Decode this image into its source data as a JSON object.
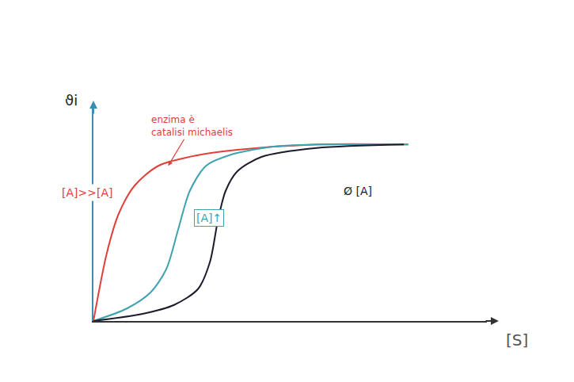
{
  "chart_data": {
    "type": "line",
    "x_label": "[S]",
    "y_label": "ϑi",
    "xlim": [
      0,
      10
    ],
    "ylim": [
      0,
      1.2
    ],
    "xticks": [],
    "yticks": [],
    "tick_labels": false,
    "grid": false,
    "annotations": [
      [
        "enzima è",
        "catalisi michaelis"
      ]
    ],
    "series": [
      {
        "name": "[A]>>[A]",
        "color": "#e0403a",
        "x": [
          0,
          0.34,
          0.64,
          1.05,
          1.65,
          2.66,
          3.66,
          5.67,
          8.0
        ],
        "values": [
          0,
          0.38,
          0.6,
          0.76,
          0.87,
          0.93,
          0.96,
          0.99,
          0.99
        ]
      },
      {
        "name": "[A]↑",
        "color": "#3fa3ad",
        "x": [
          0,
          0.85,
          1.45,
          1.85,
          2.15,
          2.45,
          2.86,
          3.46,
          4.67,
          8.0
        ],
        "values": [
          0,
          0.07,
          0.16,
          0.29,
          0.51,
          0.73,
          0.87,
          0.93,
          0.98,
          0.99
        ]
      },
      {
        "name": "Ø [A]",
        "color": "#1c1c2c",
        "x": [
          0,
          1.25,
          2.05,
          2.66,
          2.96,
          3.16,
          3.36,
          3.66,
          4.27,
          5.67,
          7.89
        ],
        "values": [
          0,
          0.04,
          0.09,
          0.18,
          0.33,
          0.56,
          0.73,
          0.84,
          0.92,
          0.97,
          0.99
        ]
      }
    ]
  }
}
